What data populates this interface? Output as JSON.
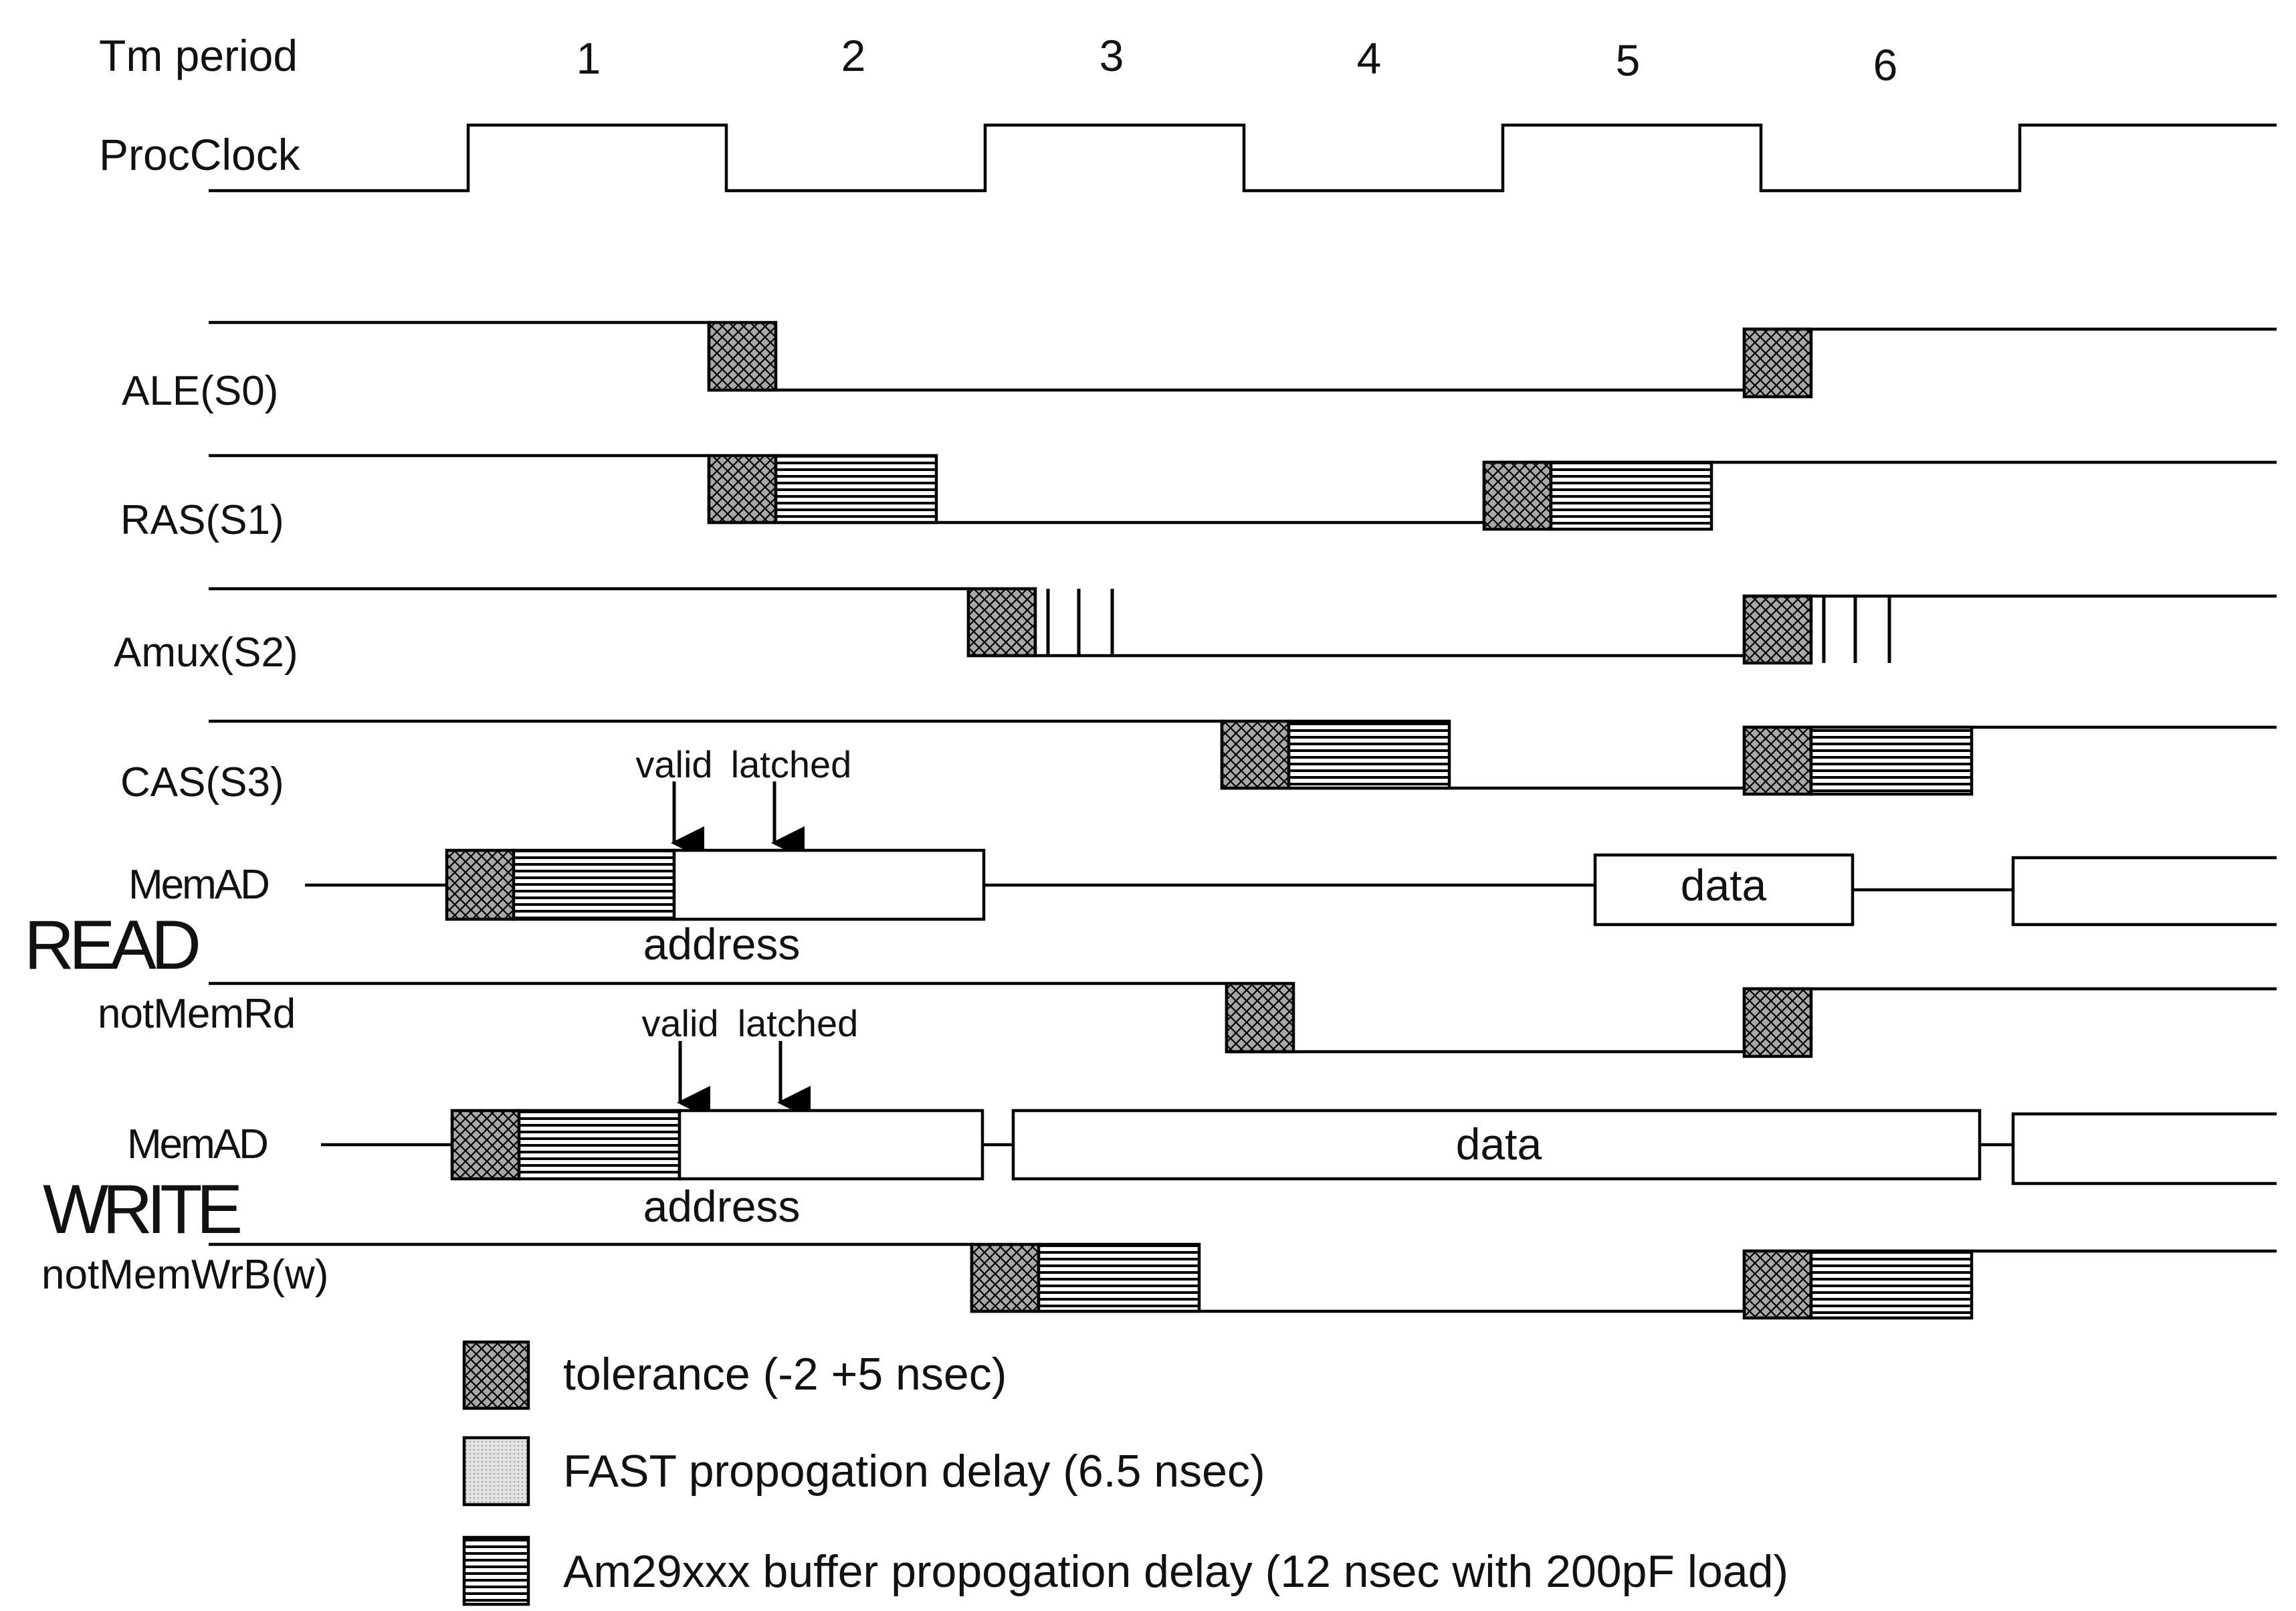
{
  "header": {
    "title": "Tm period",
    "periods": [
      "1",
      "2",
      "3",
      "4",
      "5",
      "6"
    ]
  },
  "signals": {
    "proc_clock": "ProcClock",
    "ale": "ALE(S0)",
    "ras": "RAS(S1)",
    "amux": "Amux(S2)",
    "cas": "CAS(S3)",
    "memad_read": "MemAD",
    "not_mem_rd": "notMemRd",
    "memad_write": "MemAD",
    "not_mem_wr": "notMemWrB(w)"
  },
  "sections": {
    "read": "READ",
    "write": "WRITE"
  },
  "read_bus": {
    "marker_valid": "valid",
    "marker_latched": "latched",
    "address": "address",
    "data": "data"
  },
  "write_bus": {
    "marker_valid": "valid",
    "marker_latched": "latched",
    "address": "address",
    "data": "data"
  },
  "legend": [
    {
      "key": "tolerance",
      "text": "tolerance (-2 +5 nsec)"
    },
    {
      "key": "fast",
      "text": "FAST propogation delay (6.5 nsec)"
    },
    {
      "key": "buffer",
      "text": "Am29xxx buffer propogation delay (12 nsec with 200pF load)"
    }
  ],
  "colors": {
    "ink": "#000000",
    "fast_fill": "#d8d8d8"
  }
}
